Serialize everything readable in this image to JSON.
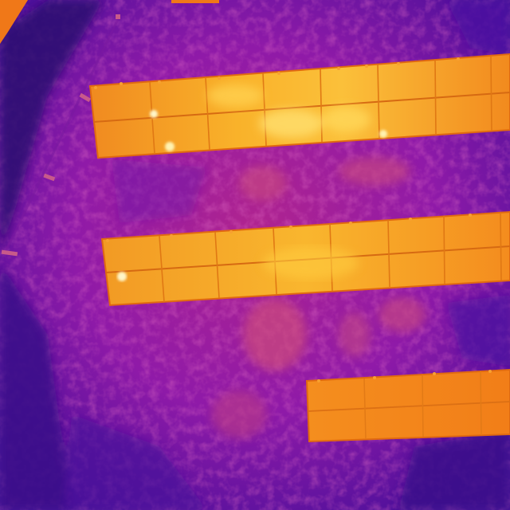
{
  "image": {
    "kind": "thermal-aerial-photo",
    "palette": [
      "#2a0870",
      "#5a12a8",
      "#8f1aa8",
      "#b0248f",
      "#d0507a",
      "#f07818",
      "#f7a41c",
      "#ffd84a"
    ],
    "panel_rows": [
      {
        "name": "panel-row-top",
        "hotspots": 3
      },
      {
        "name": "panel-row-middle",
        "hotspots": 1
      },
      {
        "name": "panel-row-bottom",
        "hotspots": 0
      }
    ]
  }
}
